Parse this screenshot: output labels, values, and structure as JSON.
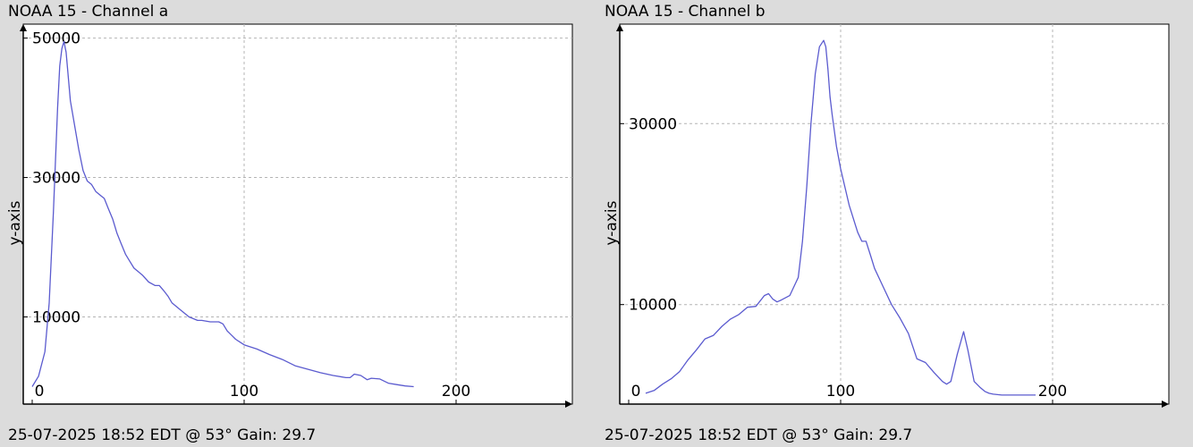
{
  "panels": [
    {
      "title": "NOAA 15 - Channel a",
      "footer": "25-07-2025 18:52 EDT @ 53° Gain: 29.7"
    },
    {
      "title": "NOAA 15 - Channel b",
      "footer": "25-07-2025 18:52 EDT @ 53° Gain: 29.7"
    }
  ],
  "colors": {
    "background": "#dcdcdc",
    "plot_area": "#ffffff",
    "line": "#5b5bcf",
    "grid": "#b4b4b4",
    "axis": "#000000"
  },
  "chart_data": [
    {
      "type": "line",
      "title": "NOAA 15 - Channel a",
      "xlabel": "",
      "ylabel": "y-axis",
      "xlim": [
        0,
        256
      ],
      "ylim": [
        -2500,
        52000
      ],
      "x_ticks": [
        0,
        100,
        200
      ],
      "y_ticks": [
        10000,
        30000,
        50000
      ],
      "grid": true,
      "series": [
        {
          "x": [
            0,
            3,
            6,
            8,
            10,
            12,
            13,
            14,
            15,
            16,
            18,
            20,
            22,
            24,
            26,
            28,
            30,
            32,
            34,
            36,
            38,
            40,
            42,
            44,
            46,
            48,
            50,
            52,
            55,
            58,
            60,
            62,
            64,
            66,
            70,
            74,
            78,
            80,
            84,
            88,
            90,
            92,
            94,
            96,
            100,
            106,
            112,
            118,
            124,
            130,
            136,
            142,
            148,
            150,
            152,
            155,
            158,
            160,
            164,
            168,
            172,
            176,
            180
          ],
          "y": [
            0,
            1500,
            5000,
            12000,
            25000,
            40000,
            46000,
            48500,
            49500,
            48000,
            41000,
            37500,
            34000,
            31000,
            29500,
            29000,
            28000,
            27500,
            27000,
            25500,
            24000,
            22000,
            20500,
            19000,
            18000,
            17000,
            16500,
            16000,
            15000,
            14500,
            14500,
            13800,
            13000,
            12000,
            11000,
            10000,
            9500,
            9500,
            9300,
            9300,
            9000,
            8000,
            7400,
            6800,
            6000,
            5400,
            4600,
            3900,
            3000,
            2500,
            2000,
            1600,
            1300,
            1300,
            1800,
            1600,
            1000,
            1200,
            1100,
            500,
            300,
            100,
            0
          ]
        }
      ]
    },
    {
      "type": "line",
      "title": "NOAA 15 - Channel b",
      "xlabel": "",
      "ylabel": "y-axis",
      "xlim": [
        0,
        256
      ],
      "ylim": [
        -1000,
        41000
      ],
      "x_ticks": [
        0,
        100,
        200
      ],
      "y_ticks": [
        10000,
        30000
      ],
      "grid": true,
      "series": [
        {
          "x": [
            8,
            12,
            16,
            20,
            24,
            28,
            32,
            36,
            40,
            44,
            48,
            52,
            56,
            60,
            64,
            66,
            68,
            70,
            72,
            76,
            80,
            82,
            84,
            86,
            88,
            90,
            92,
            93,
            94,
            95,
            96,
            98,
            100,
            104,
            108,
            110,
            112,
            114,
            116,
            120,
            124,
            128,
            132,
            136,
            140,
            144,
            148,
            150,
            152,
            155,
            158,
            160,
            163,
            166,
            168,
            170,
            172,
            174,
            176,
            180,
            184,
            188,
            192
          ],
          "y": [
            200,
            500,
            1200,
            1800,
            2600,
            3900,
            5000,
            6200,
            6600,
            7600,
            8400,
            8900,
            9700,
            9800,
            11000,
            11200,
            10600,
            10300,
            10500,
            11000,
            13000,
            17000,
            23000,
            30000,
            35500,
            38500,
            39200,
            38500,
            36000,
            33000,
            31000,
            27500,
            25000,
            21000,
            18000,
            17000,
            17000,
            15500,
            14000,
            12000,
            10000,
            8500,
            6800,
            4000,
            3600,
            2500,
            1500,
            1200,
            1500,
            4500,
            7000,
            5000,
            1500,
            800,
            400,
            200,
            100,
            50,
            0,
            0,
            0,
            0,
            0
          ]
        }
      ]
    }
  ]
}
